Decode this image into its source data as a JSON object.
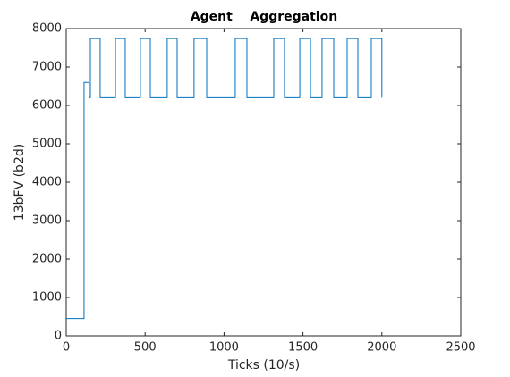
{
  "chart_data": {
    "type": "line",
    "title": "Agent    Aggregation",
    "xlabel": "Ticks (10/s)",
    "ylabel": "13bFV (b2d)",
    "xlim": [
      0,
      2500
    ],
    "ylim": [
      0,
      8000
    ],
    "xticks": [
      0,
      500,
      1000,
      1500,
      2000,
      2500
    ],
    "yticks": [
      0,
      1000,
      2000,
      3000,
      4000,
      5000,
      6000,
      7000,
      8000
    ],
    "grid": false,
    "series": [
      {
        "color": "#0072bd",
        "x": [
          0,
          113,
          113,
          145,
          145,
          153,
          153,
          215,
          215,
          312,
          312,
          374,
          374,
          470,
          470,
          533,
          533,
          640,
          640,
          703,
          703,
          810,
          810,
          890,
          890,
          1071,
          1071,
          1145,
          1145,
          1315,
          1315,
          1383,
          1383,
          1480,
          1480,
          1548,
          1548,
          1621,
          1621,
          1695,
          1695,
          1780,
          1780,
          1848,
          1848,
          1933,
          1933,
          2000,
          2000
        ],
        "values": [
          450,
          450,
          6600,
          6600,
          6200,
          6200,
          7740,
          7740,
          6200,
          6200,
          7740,
          7740,
          6200,
          6200,
          7740,
          7740,
          6200,
          6200,
          7740,
          7740,
          6200,
          6200,
          7740,
          7740,
          6200,
          6200,
          7740,
          7740,
          6200,
          6200,
          7740,
          7740,
          6200,
          6200,
          7740,
          7740,
          6200,
          6200,
          7740,
          7740,
          6200,
          6200,
          7740,
          7740,
          6200,
          6200,
          7740,
          7740,
          6200
        ]
      }
    ]
  }
}
